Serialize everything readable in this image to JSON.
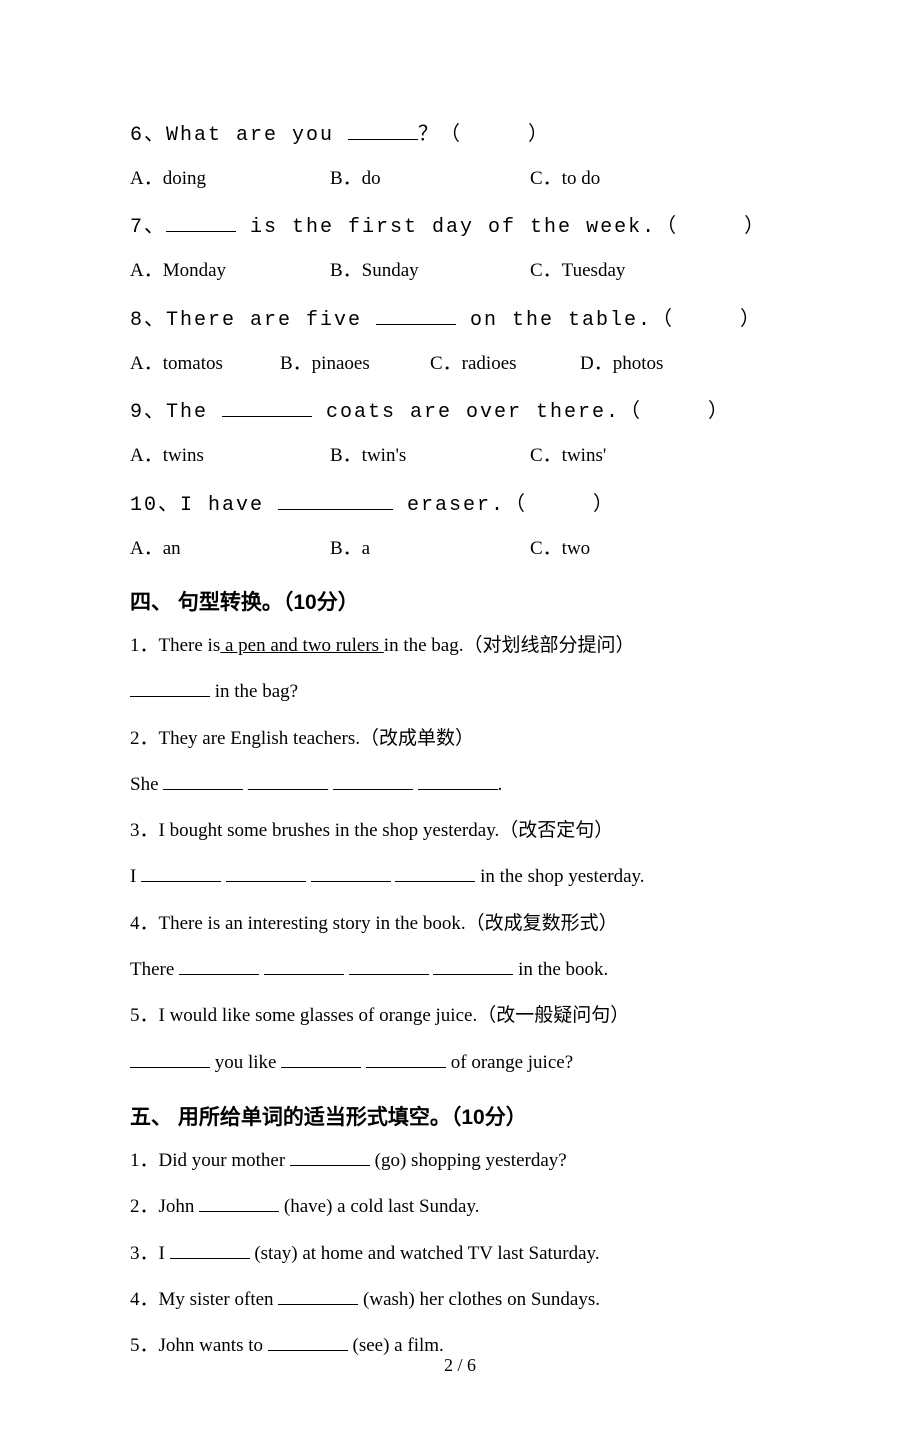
{
  "mc": [
    {
      "num": "6",
      "stem_pre": "What are you ",
      "stem_post": "？（　　　）",
      "blank_w": "b60",
      "opts": [
        "A．doing",
        "B．do",
        "C．to do"
      ],
      "cols": 3
    },
    {
      "num": "7",
      "stem_pre": "",
      "stem_post": " is the first day of the week.（　　　）",
      "blank_w": "b60",
      "opts": [
        "A．Monday",
        "B．Sunday",
        "C．Tuesday"
      ],
      "cols": 3
    },
    {
      "num": "8",
      "stem_pre": "There are five ",
      "stem_post": " on the table.（　　　）",
      "blank_w": "b70",
      "opts": [
        "A．tomatos",
        "B．pinaoes",
        "C．radioes",
        "D．photos"
      ],
      "cols": 4
    },
    {
      "num": "9",
      "stem_pre": "The ",
      "stem_post": " coats are over there.（　　　）",
      "blank_w": "b80",
      "opts": [
        "A．twins",
        "B．twin's",
        "C．twins'"
      ],
      "cols": 3
    },
    {
      "num": "10",
      "stem_pre": "I have ",
      "stem_post": " eraser.（　　　）",
      "blank_w": "b100",
      "opts": [
        "A．an",
        "B．a",
        "C．two"
      ],
      "cols": 3
    }
  ],
  "sec4": {
    "heading": "四、 句型转换。（10分）",
    "items": [
      {
        "p1_parts": [
          "1．There is",
          {
            "u": " a pen and two rulers "
          },
          "in the bag.（对划线部分提问）"
        ],
        "p2_parts": [
          {
            "b": "b70"
          },
          " in the bag?"
        ]
      },
      {
        "p1_parts": [
          "2．They are English teachers.（改成单数）"
        ],
        "p2_parts": [
          "She ",
          {
            "b": "b70"
          },
          " ",
          {
            "b": "b70"
          },
          " ",
          {
            "b": "b70"
          },
          " ",
          {
            "b": "b70"
          },
          "."
        ]
      },
      {
        "p1_parts": [
          "3．I bought some brushes in the shop yesterday.（改否定句）"
        ],
        "p2_parts": [
          "I ",
          {
            "b": "b70"
          },
          " ",
          {
            "b": "b70"
          },
          " ",
          {
            "b": "b70"
          },
          " ",
          {
            "b": "b70"
          },
          " in the shop yesterday."
        ]
      },
      {
        "p1_parts": [
          "4．There is an interesting story in the book.（改成复数形式）"
        ],
        "p2_parts": [
          "There ",
          {
            "b": "b70"
          },
          " ",
          {
            "b": "b70"
          },
          " ",
          {
            "b": "b70"
          },
          " ",
          {
            "b": "b70"
          },
          " in the book."
        ]
      },
      {
        "p1_parts": [
          "5．I would like some glasses of orange juice.（改一般疑问句）"
        ],
        "p2_parts": [
          {
            "b": "b70"
          },
          " you like ",
          {
            "b": "b70"
          },
          " ",
          {
            "b": "b70"
          },
          " of orange juice?"
        ]
      }
    ]
  },
  "sec5": {
    "heading": "五、 用所给单词的适当形式填空。（10分）",
    "items": [
      {
        "parts": [
          "1．Did your mother ",
          {
            "b": "b70"
          },
          " (go) shopping yesterday?"
        ]
      },
      {
        "parts": [
          "2．John ",
          {
            "b": "b70"
          },
          " (have) a cold last Sunday."
        ]
      },
      {
        "parts": [
          "3．I ",
          {
            "b": "b70"
          },
          " (stay) at home and watched TV last Saturday."
        ]
      },
      {
        "parts": [
          "4．My sister often ",
          {
            "b": "b70"
          },
          " (wash) her clothes on Sundays."
        ]
      },
      {
        "parts": [
          "5．John wants to ",
          {
            "b": "b70"
          },
          " (see) a film."
        ]
      }
    ]
  },
  "pagenum": "2 / 6"
}
